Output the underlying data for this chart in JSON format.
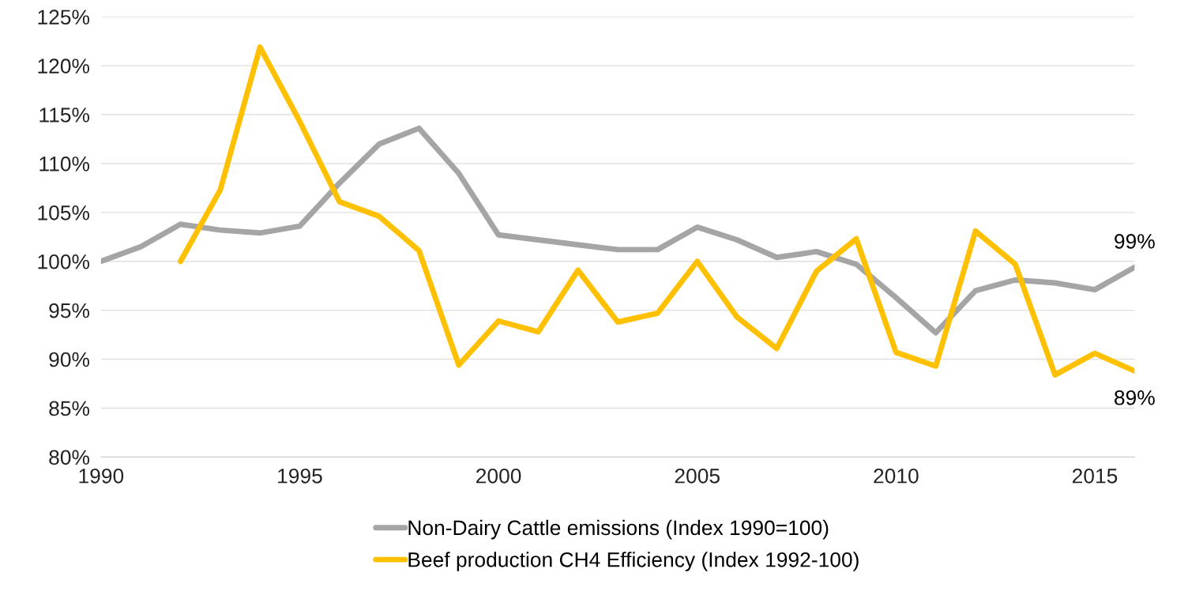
{
  "chart_data": {
    "type": "line",
    "x": [
      1990,
      1991,
      1992,
      1993,
      1994,
      1995,
      1996,
      1997,
      1998,
      1999,
      2000,
      2001,
      2002,
      2003,
      2004,
      2005,
      2006,
      2007,
      2008,
      2009,
      2010,
      2011,
      2012,
      2013,
      2014,
      2015,
      2016
    ],
    "series": [
      {
        "name": "Non-Dairy Cattle emissions (Index 1990=100)",
        "color": "#a5a5a5",
        "values": [
          100,
          101.5,
          103.8,
          103.2,
          102.9,
          103.6,
          108,
          112,
          113.6,
          109,
          102.7,
          102.2,
          101.7,
          101.2,
          101.2,
          103.5,
          102.2,
          100.4,
          101,
          99.7,
          96.3,
          92.7,
          97,
          98.1,
          97.8,
          97.1,
          99.4
        ]
      },
      {
        "name": "Beef production CH4 Efficiency (Index 1992-100)",
        "color": "#ffc000",
        "values": [
          null,
          null,
          100,
          107.3,
          121.9,
          114.3,
          106.1,
          104.6,
          101.1,
          89.4,
          93.9,
          92.8,
          99.1,
          93.8,
          94.7,
          100,
          94.3,
          91.1,
          99,
          102.3,
          90.7,
          89.3,
          103.1,
          99.7,
          88.4,
          90.6,
          88.8
        ]
      }
    ],
    "xlim": [
      1990,
      2016
    ],
    "xticks": [
      1990,
      1995,
      2000,
      2005,
      2010,
      2015
    ],
    "ylim": [
      80,
      125
    ],
    "yticks": [
      {
        "value": 80,
        "label": "80%"
      },
      {
        "value": 85,
        "label": "85%"
      },
      {
        "value": 90,
        "label": "90%"
      },
      {
        "value": 95,
        "label": "95%"
      },
      {
        "value": 100,
        "label": "100%"
      },
      {
        "value": 105,
        "label": "105%"
      },
      {
        "value": 110,
        "label": "110%"
      },
      {
        "value": 115,
        "label": "115%"
      },
      {
        "value": 120,
        "label": "120%"
      },
      {
        "value": 125,
        "label": "125%"
      }
    ],
    "grid": "y",
    "legend": "bottom",
    "marker": "none",
    "line_style": "solid",
    "annotations": [
      {
        "text": "99%",
        "x": 2016,
        "y": 99.4
      },
      {
        "text": "89%",
        "x": 2016,
        "y": 88.8
      }
    ]
  }
}
